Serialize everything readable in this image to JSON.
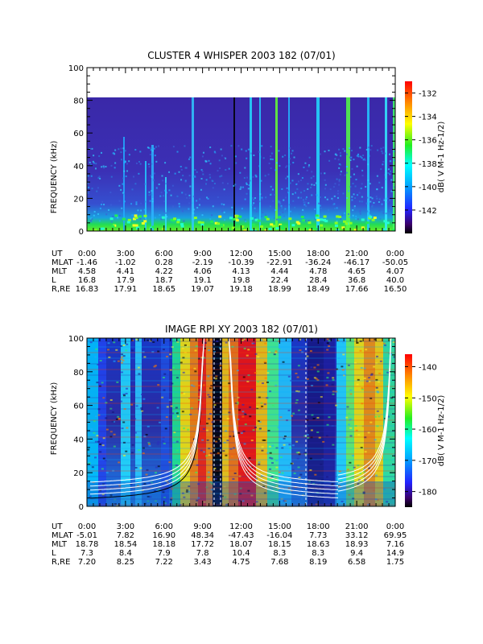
{
  "panels": [
    {
      "title": "CLUSTER 4 WHISPER 2003 182 (07/01)",
      "ylabel": "FREQUENCY (kHz)",
      "cbar_label": "dB( V M-1 Hz-1/2)",
      "cbar_ticks": [
        "-132",
        "-134",
        "-136",
        "-138",
        "-140",
        "-142"
      ],
      "ephemeris": [
        {
          "label": "UT",
          "values": [
            "0:00",
            "3:00",
            "6:00",
            "9:00",
            "12:00",
            "15:00",
            "18:00",
            "21:00",
            "0:00"
          ]
        },
        {
          "label": "MLAT",
          "values": [
            "-1.46",
            "-1.02",
            "0.28",
            "-2.19",
            "-10.39",
            "-22.91",
            "-36.24",
            "-46.17",
            "-50.05"
          ]
        },
        {
          "label": "MLT",
          "values": [
            "4.58",
            "4.41",
            "4.22",
            "4.06",
            "4.13",
            "4.44",
            "4.78",
            "4.65",
            "4.07"
          ]
        },
        {
          "label": "L",
          "values": [
            "16.8",
            "17.9",
            "18.7",
            "19.1",
            "19.8",
            "22.4",
            "28.4",
            "36.8",
            "40.0"
          ]
        },
        {
          "label": "R,RE",
          "values": [
            "16.83",
            "17.91",
            "18.65",
            "19.07",
            "19.18",
            "18.99",
            "18.49",
            "17.66",
            "16.50"
          ]
        }
      ]
    },
    {
      "title": "IMAGE RPI XY 2003 182 (07/01)",
      "ylabel": "FREQUENCY (kHz)",
      "cbar_label": "dB( V M-1 Hz-1/2)",
      "cbar_ticks": [
        "-140",
        "-150",
        "-160",
        "-170",
        "-180"
      ],
      "ephemeris": [
        {
          "label": "UT",
          "values": [
            "0:00",
            "3:00",
            "6:00",
            "9:00",
            "12:00",
            "15:00",
            "18:00",
            "21:00",
            "0:00"
          ]
        },
        {
          "label": "MLAT",
          "values": [
            "-5.01",
            "7.82",
            "16.90",
            "48.34",
            "-47.43",
            "-16.04",
            "7.73",
            "33.12",
            "69.95"
          ]
        },
        {
          "label": "MLT",
          "values": [
            "18.78",
            "18.54",
            "18.18",
            "17.72",
            "18.07",
            "18.15",
            "18.63",
            "18.93",
            "7.16"
          ]
        },
        {
          "label": "L",
          "values": [
            "7.3",
            "8.4",
            "7.9",
            "7.8",
            "10.4",
            "8.3",
            "8.3",
            "9.4",
            "14.9"
          ]
        },
        {
          "label": "R,RE",
          "values": [
            "7.20",
            "8.25",
            "7.22",
            "3.43",
            "4.75",
            "7.68",
            "8.19",
            "6.58",
            "1.75"
          ]
        }
      ]
    }
  ],
  "chart_data": [
    {
      "type": "heatmap",
      "title": "CLUSTER 4 WHISPER 2003 182 (07/01)",
      "ylabel": "FREQUENCY (kHz)",
      "x_ticks": [
        "0:00",
        "3:00",
        "6:00",
        "9:00",
        "12:00",
        "15:00",
        "18:00",
        "21:00",
        "0:00"
      ],
      "y_ticks": [
        0,
        20,
        40,
        60,
        80,
        100
      ],
      "ylim": [
        0,
        100
      ],
      "data_ylim": [
        0,
        80
      ],
      "colorbar_range_db": [
        -144,
        -131
      ],
      "colorbar_ticks": [
        -132,
        -134,
        -136,
        -138,
        -140,
        -142
      ]
    },
    {
      "type": "heatmap",
      "title": "IMAGE RPI XY 2003 182 (07/01)",
      "ylabel": "FREQUENCY (kHz)",
      "x_ticks": [
        "0:00",
        "3:00",
        "6:00",
        "9:00",
        "12:00",
        "15:00",
        "18:00",
        "21:00",
        "0:00"
      ],
      "y_ticks": [
        0,
        20,
        40,
        60,
        80,
        100
      ],
      "ylim": [
        0,
        100
      ],
      "data_ylim": [
        0,
        100
      ],
      "colorbar_range_db": [
        -185,
        -136
      ],
      "colorbar_ticks": [
        -140,
        -150,
        -160,
        -170,
        -180
      ]
    }
  ]
}
